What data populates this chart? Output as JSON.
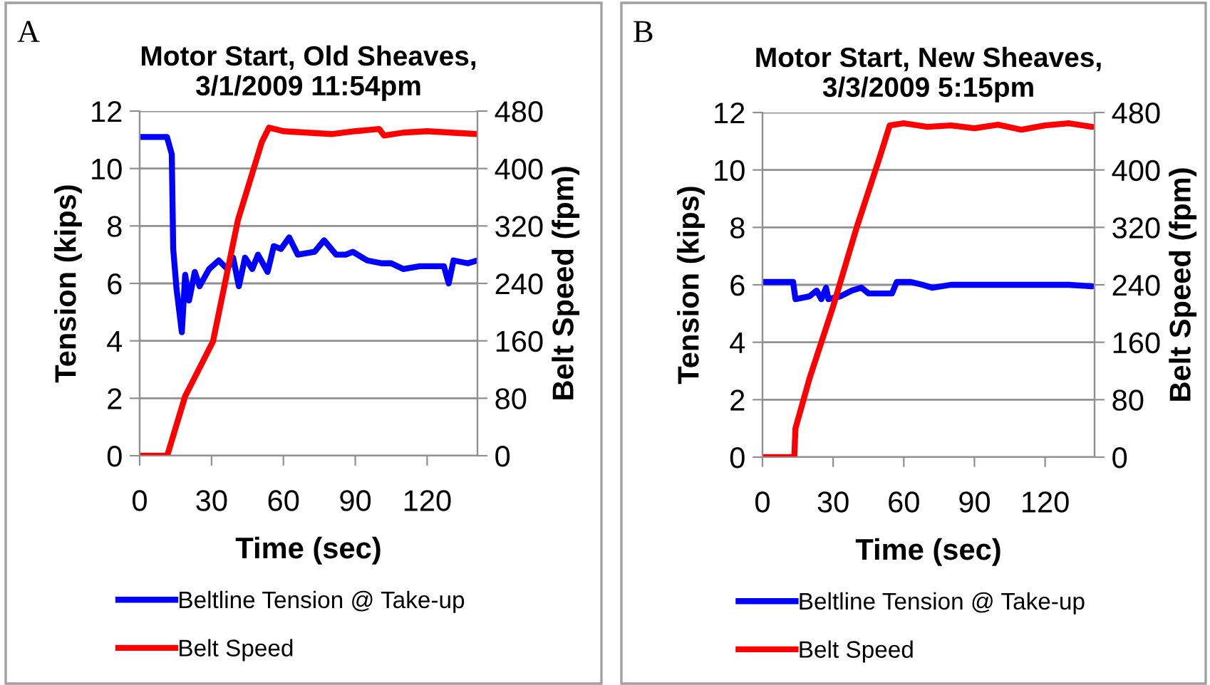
{
  "chart_data": [
    {
      "type": "line",
      "title": "Motor Start, Old Sheaves,\n3/1/2009 11:54pm",
      "xlabel": "Time (sec)",
      "ylabel": "Tension (kips)",
      "y2label": "Belt Speed (fpm)",
      "annotations": [
        "A"
      ],
      "xlim": [
        0,
        141
      ],
      "xticks": [
        0,
        30,
        60,
        90,
        120
      ],
      "ylim": [
        0,
        12
      ],
      "yticks": [
        0,
        2,
        4,
        6,
        8,
        10,
        12
      ],
      "y2lim": [
        0,
        480
      ],
      "y2ticks": [
        0,
        80,
        160,
        240,
        320,
        400,
        480
      ],
      "grid": "y",
      "legend": "bottom",
      "series": [
        {
          "name": "Beltline Tension @ Take-up",
          "color": "#0000ff",
          "x": [
            0,
            11.4,
            13.4,
            14,
            15.4,
            17.6,
            19,
            20.6,
            23,
            25,
            29,
            33,
            36.6,
            39,
            41.4,
            44,
            47,
            49.4,
            53.4,
            56,
            59,
            62.4,
            66,
            73,
            77,
            82,
            86,
            89,
            95,
            101,
            105,
            110,
            117,
            127,
            129,
            131,
            137,
            141
          ],
          "values": [
            11.1,
            11.1,
            10.5,
            7.2,
            5.8,
            4.3,
            6.3,
            5.4,
            6.4,
            5.9,
            6.5,
            6.8,
            6.5,
            6.9,
            5.9,
            6.9,
            6.5,
            7.0,
            6.4,
            7.3,
            7.2,
            7.6,
            7.0,
            7.1,
            7.5,
            7.0,
            7.0,
            7.1,
            6.8,
            6.7,
            6.7,
            6.5,
            6.6,
            6.6,
            6.0,
            6.8,
            6.7,
            6.8
          ]
        },
        {
          "name": "Belt Speed",
          "color": "#ff0000",
          "axis": "y2",
          "x": [
            0,
            11.5,
            19,
            30.6,
            41,
            51,
            54,
            60,
            70,
            80,
            90,
            100,
            102,
            110,
            120,
            130,
            141
          ],
          "values": [
            0,
            0,
            83,
            159,
            328,
            437,
            457,
            452,
            450,
            448,
            452,
            455,
            446,
            450,
            452,
            450,
            448
          ]
        }
      ]
    },
    {
      "type": "line",
      "title": "Motor Start, New Sheaves,\n3/3/2009 5:15pm",
      "xlabel": "Time (sec)",
      "ylabel": "Tension (kips)",
      "y2label": "Belt Speed (fpm)",
      "annotations": [
        "B"
      ],
      "xlim": [
        0,
        141
      ],
      "xticks": [
        0,
        30,
        60,
        90,
        120
      ],
      "ylim": [
        0,
        12
      ],
      "yticks": [
        0,
        2,
        4,
        6,
        8,
        10,
        12
      ],
      "y2lim": [
        0,
        480
      ],
      "y2ticks": [
        0,
        80,
        160,
        240,
        320,
        400,
        480
      ],
      "grid": "y",
      "legend": "bottom",
      "series": [
        {
          "name": "Beltline Tension @ Take-up",
          "color": "#0000ff",
          "x": [
            0,
            13,
            14,
            20,
            23,
            25,
            27,
            28,
            33,
            38,
            42,
            45,
            55,
            57,
            63,
            68,
            72,
            80,
            100,
            130,
            140
          ],
          "values": [
            6.1,
            6.1,
            5.5,
            5.6,
            5.8,
            5.5,
            5.9,
            5.5,
            5.6,
            5.8,
            5.9,
            5.7,
            5.7,
            6.1,
            6.1,
            6.0,
            5.9,
            6.0,
            6.0,
            6.0,
            5.95
          ]
        },
        {
          "name": "Belt Speed",
          "color": "#ff0000",
          "axis": "y2",
          "x": [
            0,
            13.5,
            14,
            20,
            30,
            40,
            50,
            54,
            60,
            70,
            80,
            90,
            100,
            110,
            120,
            130,
            140
          ],
          "values": [
            0,
            0,
            40,
            110,
            210,
            320,
            420,
            462,
            465,
            460,
            462,
            458,
            463,
            456,
            462,
            465,
            460
          ]
        }
      ]
    }
  ]
}
